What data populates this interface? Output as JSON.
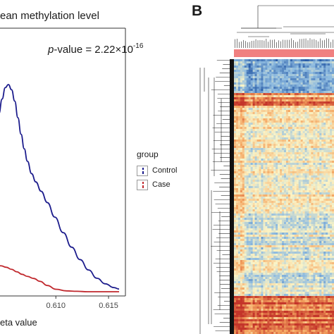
{
  "panel_a": {
    "title": "ean methylation level",
    "pvalue_label": "p",
    "pvalue_text": "-value = 2.22×10",
    "pvalue_exp": "-16",
    "xlabel": "eta value"
  },
  "panel_b": {
    "label": "B"
  },
  "legend": {
    "title": "group",
    "items": [
      {
        "label": "Control",
        "color": "#1c1c8c"
      },
      {
        "label": "Case",
        "color": "#c0282d"
      }
    ]
  },
  "chart_data": [
    {
      "type": "line",
      "title": "",
      "xlabel": "eta value",
      "ylabel": "",
      "x_ticks": [
        "0.610",
        "0.615"
      ],
      "xlim": [
        0.6043,
        0.6162
      ],
      "grid": false,
      "legend_position": "right",
      "series": [
        {
          "name": "Control",
          "color": "#1c1c8c",
          "x": [
            0.6043,
            0.6046,
            0.6049,
            0.6052,
            0.6055,
            0.6058,
            0.6061,
            0.6064,
            0.6067,
            0.607,
            0.6073,
            0.6077,
            0.6081,
            0.6086,
            0.6092,
            0.6099,
            0.6107,
            0.6115,
            0.6123,
            0.6131,
            0.6139,
            0.6147,
            0.6155,
            0.616
          ],
          "y": [
            0.78,
            0.86,
            0.93,
            0.985,
            1.0,
            0.975,
            0.92,
            0.84,
            0.76,
            0.69,
            0.63,
            0.57,
            0.53,
            0.485,
            0.43,
            0.36,
            0.285,
            0.215,
            0.155,
            0.105,
            0.065,
            0.038,
            0.02,
            0.013
          ]
        },
        {
          "name": "Case",
          "color": "#c0282d",
          "x": [
            0.6043,
            0.6048,
            0.6053,
            0.6058,
            0.6063,
            0.6068,
            0.6073,
            0.6079,
            0.6085,
            0.6092,
            0.61,
            0.611,
            0.612,
            0.613,
            0.614,
            0.615,
            0.616
          ],
          "y": [
            0.13,
            0.125,
            0.118,
            0.108,
            0.096,
            0.084,
            0.074,
            0.064,
            0.05,
            0.03,
            0.012,
            0.004,
            0.002,
            0.0,
            0.0,
            0.0,
            0.0
          ]
        }
      ]
    },
    {
      "type": "heatmap",
      "title": "",
      "row_dendrogram": true,
      "column_dendrogram": true,
      "annotation_bar_color": "#f08080",
      "color_scale": [
        "#2a5da8",
        "#8ebbe0",
        "#fbf4c6",
        "#f4a45f",
        "#c4352a"
      ]
    }
  ]
}
